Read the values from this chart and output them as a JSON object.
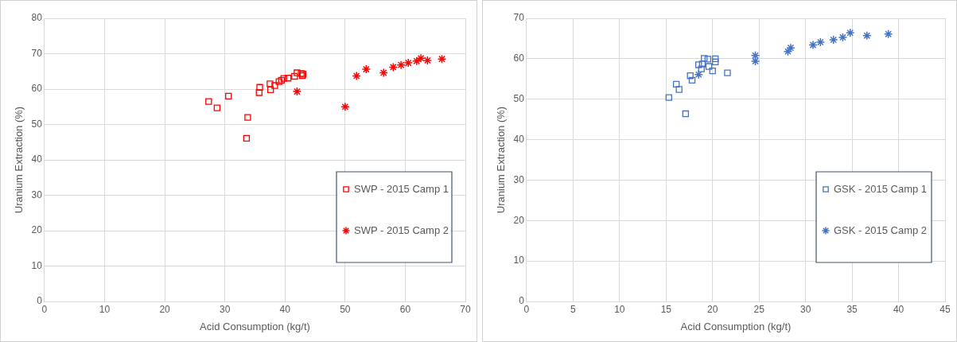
{
  "chart_data": [
    {
      "type": "scatter",
      "xlabel": "Acid Consumption (kg/t)",
      "ylabel": "Uranium Extraction (%)",
      "xlim": [
        0,
        70
      ],
      "xticks": [
        0,
        10,
        20,
        30,
        40,
        50,
        60,
        70
      ],
      "ylim": [
        0,
        80
      ],
      "yticks": [
        0,
        10,
        20,
        30,
        40,
        50,
        60,
        70,
        80
      ],
      "grid": true,
      "legend": "bottom right",
      "series": [
        {
          "name": "SWP - 2015 Camp 1",
          "color": "#ff0000",
          "marker": "square",
          "x": [
            27.3,
            28.7,
            30.6,
            33.6,
            33.8,
            35.7,
            35.8,
            37.5,
            37.6,
            38.3,
            39,
            39.4,
            39.8,
            40.5,
            41.6,
            42,
            42.7,
            42.9,
            43
          ],
          "values": [
            56.5,
            54.7,
            58,
            46.1,
            52,
            59,
            60.5,
            61.5,
            59.8,
            61,
            62.1,
            62.5,
            63,
            63.1,
            63.6,
            64.6,
            64.4,
            63.8,
            64.2
          ]
        },
        {
          "name": "SWP - 2015 Camp 2",
          "color": "#ff0000",
          "marker": "cross",
          "x": [
            42,
            50,
            51.9,
            53.5,
            56.4,
            58,
            59.3,
            60.5,
            61.9,
            62.6,
            63.7,
            66.1
          ],
          "values": [
            59.3,
            55,
            63.7,
            65.6,
            64.6,
            66.2,
            66.8,
            67.4,
            67.9,
            68.7,
            68.1,
            68.5
          ]
        }
      ]
    },
    {
      "type": "scatter",
      "xlabel": "Acid Consumption (kg/t)",
      "ylabel": "Uranium Extraction (%)",
      "xlim": [
        0,
        45
      ],
      "xticks": [
        0,
        5,
        10,
        15,
        20,
        25,
        30,
        35,
        40,
        45
      ],
      "ylim": [
        0,
        70
      ],
      "yticks": [
        0,
        10,
        20,
        30,
        40,
        50,
        60,
        70
      ],
      "grid": true,
      "legend": "bottom right",
      "series": [
        {
          "name": "GSK - 2015 Camp 1",
          "color": "#4472c4",
          "marker": "square",
          "x": [
            15.3,
            16.1,
            16.4,
            17.1,
            17.6,
            17.8,
            18.5,
            18.8,
            18.9,
            19.1,
            19.5,
            19.6,
            20,
            20.3,
            20.3,
            21.6
          ],
          "values": [
            50.4,
            53.7,
            52.4,
            46.4,
            55.8,
            54.7,
            58.5,
            57.5,
            58.7,
            60.1,
            59.9,
            58.1,
            57,
            60,
            59.2,
            56.5
          ]
        },
        {
          "name": "GSK - 2015 Camp 2",
          "color": "#4472c4",
          "marker": "cross",
          "x": [
            18.5,
            24.6,
            24.6,
            28.1,
            28.4,
            30.8,
            31.6,
            33,
            34,
            34.8,
            36.6,
            38.9
          ],
          "values": [
            56.1,
            60.8,
            59.4,
            61.8,
            62.7,
            63.4,
            64.1,
            64.7,
            65.3,
            66.4,
            65.7,
            66.1
          ]
        }
      ]
    }
  ]
}
